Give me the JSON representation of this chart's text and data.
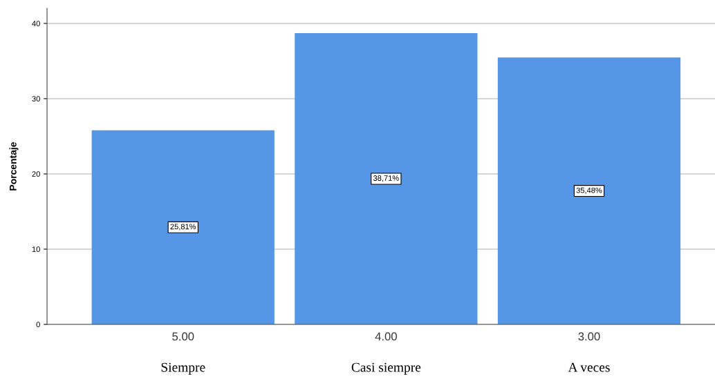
{
  "chart_data": {
    "type": "bar",
    "ylabel": "Porcentaje",
    "categories": [
      "5.00",
      "4.00",
      "3.00"
    ],
    "values": [
      25.81,
      38.71,
      35.48
    ],
    "value_labels": [
      "25,81%",
      "38,71%",
      "35,48%"
    ],
    "color": "#5596e6",
    "ylim": [
      0,
      42
    ],
    "yticks": [
      0,
      10,
      20,
      30,
      40
    ],
    "grid": "y",
    "legend": false,
    "annotations": [
      "Siempre",
      "Casi siempre",
      "A veces"
    ]
  }
}
